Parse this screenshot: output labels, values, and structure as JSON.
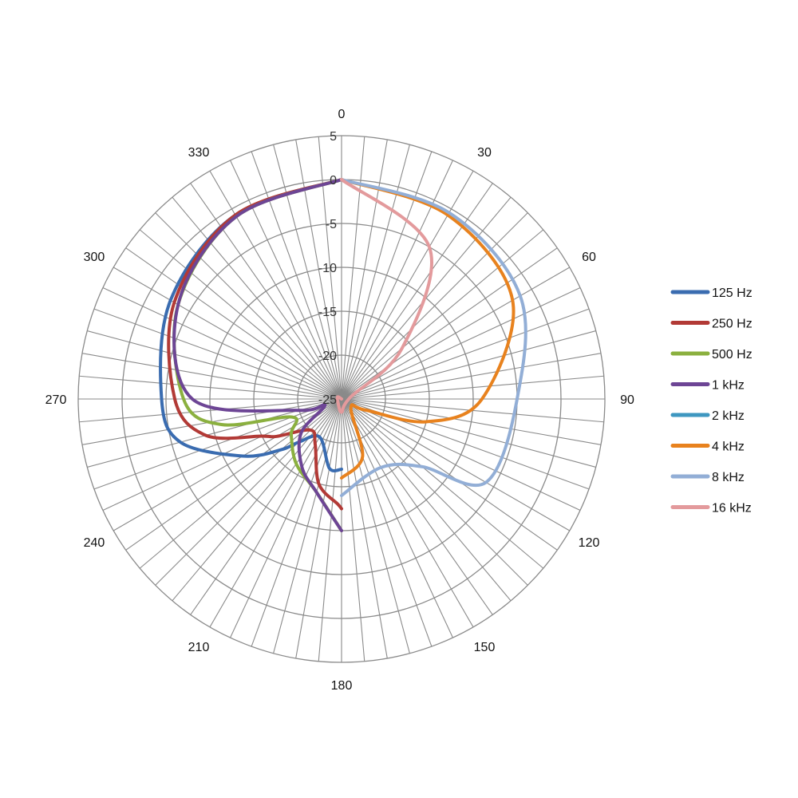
{
  "chart_data": {
    "type": "polar-line",
    "title": "",
    "radial_range": [
      -25,
      5
    ],
    "radial_ticks": [
      5,
      0,
      -5,
      -10,
      -15,
      -20,
      -25
    ],
    "radial_tick_labels": [
      "5",
      "0",
      "-5",
      "-10",
      "-15",
      "-20",
      "-25"
    ],
    "angle_step_deg": 5,
    "angle_labels": [
      "0",
      "30",
      "60",
      "90",
      "120",
      "150",
      "180",
      "210",
      "240",
      "270",
      "300",
      "330"
    ],
    "legend_position": "right",
    "series": [
      {
        "name": "125 Hz",
        "color": "#3A6CB0",
        "points": [
          [
            0,
            0
          ],
          [
            330,
            -0.8
          ],
          [
            300,
            -2.5
          ],
          [
            270,
            -4.5
          ],
          [
            255,
            -6
          ],
          [
            240,
            -12
          ],
          [
            230,
            -16
          ],
          [
            225,
            -18
          ],
          [
            210,
            -20
          ],
          [
            190,
            -17
          ],
          [
            180,
            -17
          ]
        ]
      },
      {
        "name": "250 Hz",
        "color": "#B23A36",
        "points": [
          [
            0,
            0
          ],
          [
            330,
            -0.8
          ],
          [
            300,
            -3
          ],
          [
            270,
            -6
          ],
          [
            255,
            -9
          ],
          [
            245,
            -15
          ],
          [
            240,
            -16.5
          ],
          [
            225,
            -20
          ],
          [
            210,
            -19
          ],
          [
            195,
            -15
          ],
          [
            182,
            -13
          ],
          [
            180,
            -12.5
          ]
        ]
      },
      {
        "name": "500 Hz",
        "color": "#8BB03F",
        "points": [
          [
            0,
            0
          ],
          [
            330,
            -1
          ],
          [
            300,
            -3.5
          ],
          [
            270,
            -7
          ],
          [
            258,
            -11
          ],
          [
            250,
            -19
          ],
          [
            235,
            -18
          ],
          [
            215,
            -16
          ],
          [
            195,
            -14
          ],
          [
            180,
            -10
          ]
        ]
      },
      {
        "name": "1 kHz",
        "color": "#6D4595",
        "points": [
          [
            0,
            0
          ],
          [
            330,
            -1
          ],
          [
            300,
            -3.5
          ],
          [
            270,
            -8
          ],
          [
            255,
            -20
          ],
          [
            250,
            -23
          ],
          [
            230,
            -19
          ],
          [
            210,
            -16
          ],
          [
            195,
            -14
          ],
          [
            180,
            -10
          ]
        ]
      },
      {
        "name": "2 kHz",
        "color": "#3E97C0",
        "points": []
      },
      {
        "name": "4 kHz",
        "color": "#E8821E",
        "points": [
          [
            0,
            0
          ],
          [
            30,
            -0.8
          ],
          [
            60,
            -2.5
          ],
          [
            90,
            -9
          ],
          [
            105,
            -15
          ],
          [
            115,
            -22
          ],
          [
            135,
            -23.5
          ],
          [
            160,
            -18
          ],
          [
            180,
            -16
          ]
        ]
      },
      {
        "name": "8 kHz",
        "color": "#92AED6",
        "points": [
          [
            0,
            0
          ],
          [
            30,
            -0.5
          ],
          [
            60,
            -1.5
          ],
          [
            90,
            -5
          ],
          [
            120,
            -6
          ],
          [
            130,
            -13
          ],
          [
            150,
            -16
          ],
          [
            180,
            -14
          ]
        ]
      },
      {
        "name": "16 kHz",
        "color": "#E39A9C",
        "points": [
          [
            0,
            0
          ],
          [
            30,
            -5
          ],
          [
            50,
            -16
          ],
          [
            80,
            -24
          ],
          [
            180,
            -23.5
          ],
          [
            240,
            -24.5
          ],
          [
            300,
            -24.5
          ],
          [
            360,
            -25
          ]
        ]
      }
    ]
  }
}
